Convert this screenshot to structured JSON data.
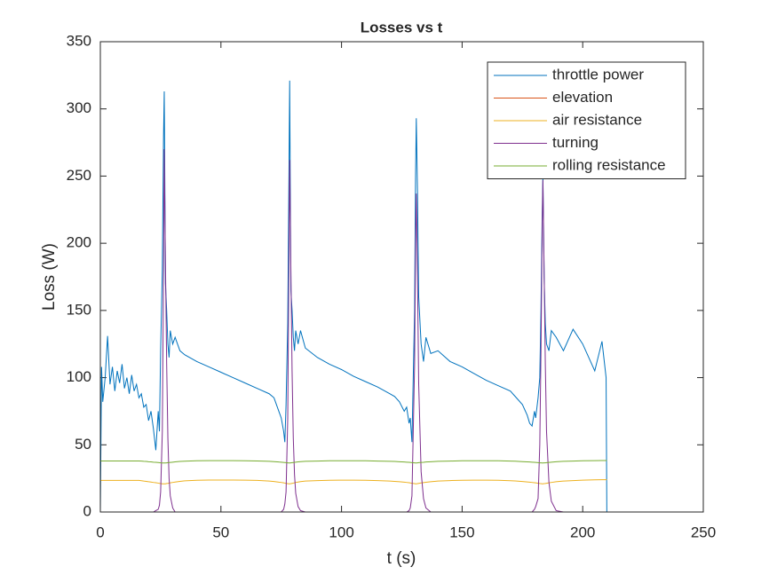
{
  "chart_data": {
    "type": "line",
    "title": "Losses vs t",
    "x_label": "t (s)",
    "y_label": "Loss (W)",
    "xlim": [
      0,
      250
    ],
    "xticks": [
      0,
      50,
      100,
      150,
      200,
      250
    ],
    "ylim": [
      0,
      350
    ],
    "yticks": [
      0,
      50,
      100,
      150,
      200,
      250,
      300,
      350
    ],
    "legend": "northeast",
    "x": [
      0,
      0.5,
      1,
      2,
      3,
      4,
      5,
      6,
      7,
      8,
      9,
      10,
      11,
      12,
      13,
      14,
      15,
      16,
      17,
      18,
      19,
      20,
      21,
      22,
      23,
      24,
      24.5,
      25,
      25.7,
      26.2,
      26.5,
      27,
      27.5,
      28,
      28.5,
      29,
      30,
      31,
      33,
      35,
      40,
      45,
      50,
      55,
      60,
      65,
      70,
      72,
      74,
      75,
      76,
      76.5,
      77,
      77.7,
      78.2,
      78.5,
      79,
      79.5,
      80,
      80.5,
      81,
      82,
      83,
      85,
      90,
      95,
      100,
      105,
      110,
      115,
      120,
      122,
      124,
      126,
      127,
      128,
      128.5,
      129.2,
      130.3,
      130.7,
      131,
      131.5,
      132,
      133,
      134,
      135,
      137,
      140,
      145,
      150,
      155,
      160,
      165,
      170,
      172,
      175,
      177,
      178,
      179,
      180,
      180.5,
      181.5,
      182.2,
      182.7,
      183.2,
      183.5,
      184,
      184.5,
      185,
      186,
      187,
      189,
      192,
      196,
      200,
      205,
      208,
      209.7,
      210
    ],
    "series": [
      {
        "name": "throttle power",
        "color": "#0072bd",
        "values": [
          0,
          108,
          82,
          100,
          131,
          95,
          108,
          90,
          105,
          96,
          110,
          92,
          100,
          88,
          102,
          90,
          95,
          85,
          88,
          78,
          80,
          68,
          75,
          62,
          46,
          75,
          60,
          120,
          180,
          280,
          313,
          170,
          150,
          125,
          115,
          135,
          125,
          130,
          120,
          117,
          112,
          108,
          104,
          100,
          96,
          92,
          88,
          85,
          75,
          70,
          60,
          52,
          80,
          140,
          250,
          321,
          165,
          150,
          130,
          120,
          135,
          125,
          135,
          122,
          115,
          110,
          106,
          101,
          97,
          93,
          88,
          86,
          82,
          75,
          78,
          66,
          70,
          52,
          150,
          250,
          293,
          238,
          160,
          125,
          112,
          130,
          118,
          120,
          112,
          108,
          103,
          98,
          94,
          90,
          86,
          80,
          72,
          66,
          64,
          75,
          70,
          85,
          100,
          150,
          220,
          250,
          175,
          140,
          125,
          120,
          135,
          130,
          120,
          136,
          125,
          105,
          127,
          100,
          0
        ]
      },
      {
        "name": "elevation",
        "color": "#d95319",
        "values": [
          0,
          0,
          0,
          0,
          0,
          0,
          0,
          0,
          0,
          0,
          0,
          0,
          0,
          0,
          0,
          0,
          0,
          0,
          0,
          0,
          0,
          0,
          0,
          0,
          0,
          0,
          0,
          0,
          0,
          0,
          0,
          0,
          0,
          0,
          0,
          0,
          0,
          0,
          0,
          0,
          0,
          0,
          0,
          0,
          0,
          0,
          0,
          0,
          0,
          0,
          0,
          0,
          0,
          0,
          0,
          0,
          0,
          0,
          0,
          0,
          0,
          0,
          0,
          0,
          0,
          0,
          0,
          0,
          0,
          0,
          0,
          0,
          0,
          0,
          0,
          0,
          0,
          0,
          0,
          0,
          0,
          0,
          0,
          0,
          0,
          0,
          0,
          0,
          0,
          0,
          0,
          0,
          0,
          0,
          0,
          0,
          0,
          0,
          0,
          0,
          0,
          0,
          0,
          0,
          0,
          0,
          0,
          0,
          0,
          0,
          0,
          0,
          0,
          0,
          0,
          0,
          0,
          0,
          0
        ]
      },
      {
        "name": "air resistance",
        "color": "#edb120",
        "values": [
          23.5,
          23.5,
          23.5,
          23.5,
          23.5,
          23.5,
          23.5,
          23.5,
          23.5,
          23.5,
          23.5,
          23.5,
          23.5,
          23.5,
          23.5,
          23.5,
          23.5,
          23.5,
          23.3,
          23,
          22.8,
          22.5,
          22.3,
          22,
          21.8,
          21.5,
          21.3,
          21.2,
          21,
          21,
          21,
          21,
          21.2,
          21.3,
          21.5,
          21.7,
          22,
          22.3,
          22.8,
          23.2,
          23.6,
          23.8,
          23.8,
          23.8,
          23.7,
          23.5,
          23,
          22.7,
          22.2,
          22,
          21.7,
          21.5,
          21.3,
          21.1,
          21,
          21,
          21.1,
          21.3,
          21.5,
          21.7,
          22,
          22.3,
          22.6,
          23,
          23.4,
          23.6,
          23.7,
          23.7,
          23.6,
          23.4,
          23,
          22.8,
          22.5,
          22.2,
          22,
          21.8,
          21.6,
          21.4,
          21.1,
          21,
          21,
          21.1,
          21.3,
          21.6,
          21.9,
          22.1,
          22.5,
          23,
          23.4,
          23.6,
          23.7,
          23.7,
          23.6,
          23.3,
          23.1,
          22.7,
          22.4,
          22.2,
          22,
          21.8,
          21.7,
          21.4,
          21.2,
          21.1,
          21,
          21,
          21.1,
          21.2,
          21.4,
          21.7,
          22,
          22.5,
          23,
          23.4,
          23.7,
          23.9,
          24,
          24,
          24
        ]
      },
      {
        "name": "turning",
        "color": "#7e2f8e",
        "values": [
          0,
          0,
          0,
          0,
          0,
          0,
          0,
          0,
          0,
          0,
          0,
          0,
          0,
          0,
          0,
          0,
          0,
          0,
          0,
          0,
          0,
          0,
          0,
          0,
          1,
          2,
          5,
          15,
          60,
          180,
          270,
          185,
          110,
          55,
          25,
          12,
          3,
          0,
          0,
          0,
          0,
          0,
          0,
          0,
          0,
          0,
          0,
          0,
          0,
          0,
          2,
          6,
          15,
          70,
          190,
          262,
          180,
          105,
          55,
          28,
          14,
          4,
          1,
          0,
          0,
          0,
          0,
          0,
          0,
          0,
          0,
          0,
          0,
          0,
          0,
          1,
          3,
          12,
          110,
          200,
          237,
          175,
          95,
          30,
          10,
          3,
          0,
          0,
          0,
          0,
          0,
          0,
          0,
          0,
          0,
          0,
          0,
          0,
          0,
          2,
          4,
          10,
          50,
          120,
          210,
          247,
          180,
          110,
          60,
          22,
          8,
          1,
          0,
          0,
          0,
          0,
          0,
          0,
          0
        ]
      },
      {
        "name": "rolling resistance",
        "color": "#77ac30",
        "values": [
          38,
          38,
          38,
          38,
          38,
          38,
          38,
          38,
          38,
          38,
          38,
          38,
          38,
          38,
          38,
          38,
          38,
          38,
          37.9,
          37.7,
          37.6,
          37.4,
          37.3,
          37.1,
          37,
          36.8,
          36.7,
          36.6,
          36.5,
          36.5,
          36.5,
          36.5,
          36.6,
          36.7,
          36.8,
          36.9,
          37.1,
          37.3,
          37.6,
          37.8,
          38.1,
          38.2,
          38.2,
          38.2,
          38.1,
          38,
          37.7,
          37.5,
          37.2,
          37.1,
          36.9,
          36.8,
          36.7,
          36.6,
          36.5,
          36.5,
          36.6,
          36.7,
          36.8,
          36.9,
          37.1,
          37.3,
          37.5,
          37.7,
          37.9,
          38.1,
          38.1,
          38.1,
          38.1,
          37.9,
          37.7,
          37.6,
          37.4,
          37.2,
          37.1,
          37,
          36.9,
          36.7,
          36.6,
          36.5,
          36.5,
          36.6,
          36.7,
          36.9,
          37,
          37.2,
          37.4,
          37.7,
          37.9,
          38.1,
          38.1,
          38.1,
          38.1,
          37.9,
          37.8,
          37.5,
          37.3,
          37.2,
          37.1,
          37,
          36.9,
          36.7,
          36.6,
          36.6,
          36.5,
          36.5,
          36.6,
          36.6,
          36.7,
          36.9,
          37.1,
          37.4,
          37.7,
          37.9,
          38.1,
          38.2,
          38.3,
          38.3,
          38.3
        ]
      }
    ]
  }
}
